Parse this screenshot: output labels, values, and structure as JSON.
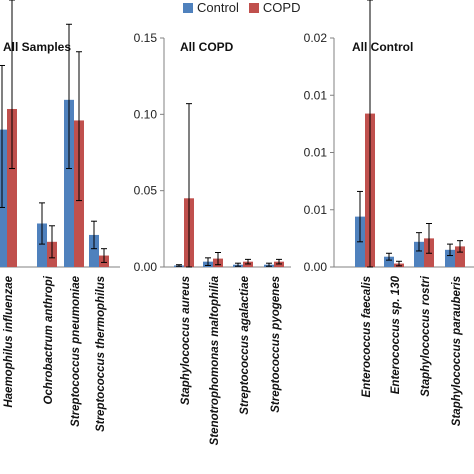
{
  "legend": {
    "control_label": "Control",
    "copd_label": "COPD"
  },
  "colors": {
    "control": "#4f81bd",
    "copd": "#c0504d",
    "axis": "#808080",
    "error": "#000000"
  },
  "chart_data": [
    {
      "type": "bar",
      "title": "All Samples",
      "ylim": [
        0,
        1
      ],
      "yticks": [],
      "ytick_labels": [],
      "categories": [
        "Haemophilus influenzae",
        "Ochrobactrum anthropi",
        "Streptococcus pneumoniae",
        "Streptococcus thermophilus"
      ],
      "series": [
        {
          "name": "Control",
          "values": [
            0.6,
            0.19,
            0.73,
            0.14
          ],
          "err_low": [
            0.34,
            0.09,
            0.3,
            0.06
          ],
          "err_high": [
            0.28,
            0.09,
            0.33,
            0.06
          ]
        },
        {
          "name": "COPD",
          "values": [
            0.69,
            0.11,
            0.64,
            0.05
          ],
          "err_low": [
            0.26,
            0.07,
            0.35,
            0.03
          ],
          "err_high": [
            0.66,
            0.07,
            0.3,
            0.03
          ]
        }
      ],
      "grid": false
    },
    {
      "type": "bar",
      "title": "All COPD",
      "ylim": [
        0,
        0.15
      ],
      "yticks": [
        0,
        0.05,
        0.1,
        0.15
      ],
      "ytick_labels": [
        "0.00",
        "0.05",
        "0.10",
        "0.15"
      ],
      "categories": [
        "Staphylococcus aureus",
        "Stenotrophomonas maltophilia",
        "Streptococcus agalactiae",
        "Streptococcus pyogenes"
      ],
      "series": [
        {
          "name": "Control",
          "values": [
            0.001,
            0.0035,
            0.0015,
            0.0015
          ],
          "err_low": [
            0.0005,
            0.0025,
            0.001,
            0.001
          ],
          "err_high": [
            0.0005,
            0.0025,
            0.001,
            0.001
          ]
        },
        {
          "name": "COPD",
          "values": [
            0.045,
            0.0055,
            0.0035,
            0.0035
          ],
          "err_low": [
            0.045,
            0.004,
            0.0015,
            0.0015
          ],
          "err_high": [
            0.062,
            0.004,
            0.0015,
            0.0015
          ]
        }
      ],
      "grid": false
    },
    {
      "type": "bar",
      "title": "All Control",
      "ylim": [
        0,
        0.02
      ],
      "yticks": [
        0,
        0.005,
        0.01,
        0.015,
        0.02
      ],
      "ytick_labels": [
        "0.00",
        "0.01",
        "0.01",
        "0.01",
        "0.02"
      ],
      "categories": [
        "Enterococcus faecalis",
        "Enterococcus sp. 130",
        "Staphylococcus rostri",
        "Staphylococcus parauberis"
      ],
      "series": [
        {
          "name": "Control",
          "values": [
            0.0044,
            0.0009,
            0.0022,
            0.0015
          ],
          "err_low": [
            0.0022,
            0.0003,
            0.0008,
            0.0005
          ],
          "err_high": [
            0.0022,
            0.0003,
            0.0008,
            0.0005
          ]
        },
        {
          "name": "COPD",
          "values": [
            0.0134,
            0.0003,
            0.0025,
            0.0018
          ],
          "err_low": [
            0.0134,
            0.0002,
            0.0013,
            0.0005
          ],
          "err_high": [
            0.0111,
            0.0002,
            0.0013,
            0.0005
          ]
        }
      ],
      "grid": false
    }
  ]
}
